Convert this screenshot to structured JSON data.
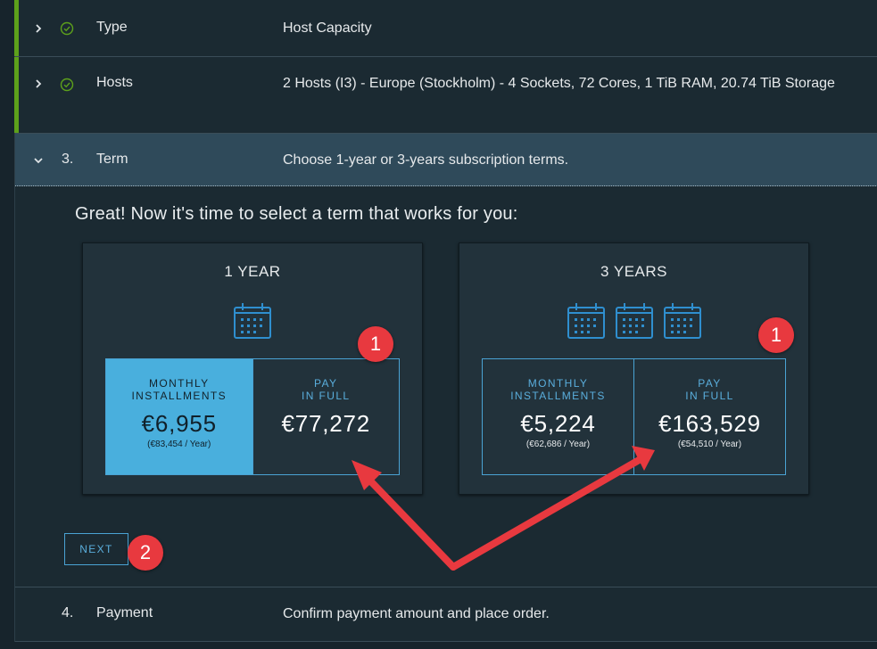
{
  "steps": [
    {
      "name": "Type",
      "desc": "Host Capacity"
    },
    {
      "name": "Hosts",
      "desc": "2 Hosts (I3) - Europe (Stockholm) - 4 Sockets, 72 Cores, 1 TiB RAM, 20.74 TiB Storage"
    },
    {
      "num": "3.",
      "name": "Term",
      "desc": "Choose 1-year or 3-years subscription terms."
    },
    {
      "num": "4.",
      "name": "Payment",
      "desc": "Confirm payment amount and place order."
    }
  ],
  "headline": "Great! Now it's time to select a term that works for you:",
  "terms": [
    {
      "title": "1 YEAR",
      "monthly": {
        "label_1": "MONTHLY",
        "label_2": "INSTALLMENTS",
        "price": "€6,955",
        "sub": "(€83,454 / Year)"
      },
      "full": {
        "label_1": "PAY",
        "label_2": "IN FULL",
        "price": "€77,272"
      }
    },
    {
      "title": "3 YEARS",
      "monthly": {
        "label_1": "MONTHLY",
        "label_2": "INSTALLMENTS",
        "price": "€5,224",
        "sub": "(€62,686 / Year)"
      },
      "full": {
        "label_1": "PAY",
        "label_2": "IN FULL",
        "price": "€163,529",
        "sub": "(€54,510 / Year)"
      }
    }
  ],
  "selected_option": "1 YEAR / MONTHLY INSTALLMENTS",
  "next_label": "NEXT",
  "annotations": {
    "badge_1": "1",
    "badge_2": "2"
  },
  "colors": {
    "accent": "#49afdd",
    "success": "#5da11b",
    "annotation": "#e8393f"
  }
}
